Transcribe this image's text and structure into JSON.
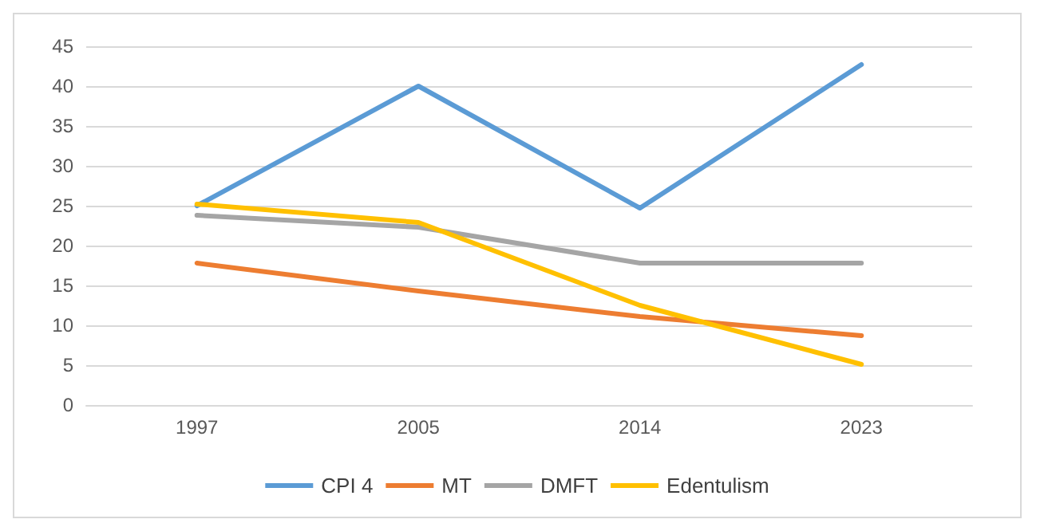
{
  "chart_data": {
    "type": "line",
    "categories": [
      "1997",
      "2005",
      "2014",
      "2023"
    ],
    "series": [
      {
        "name": "CPI 4",
        "color": "#5b9bd5",
        "values": [
          25,
          40,
          24.7,
          42.7
        ]
      },
      {
        "name": "MT",
        "color": "#ed7d31",
        "values": [
          17.8,
          14.3,
          11.1,
          8.7
        ]
      },
      {
        "name": "DMFT",
        "color": "#a5a5a5",
        "values": [
          23.8,
          22.3,
          17.8,
          17.8
        ]
      },
      {
        "name": "Edentulism",
        "color": "#ffc000",
        "values": [
          25.2,
          22.9,
          12.5,
          5.1
        ]
      }
    ],
    "ylim": [
      0,
      45
    ],
    "yticks": [
      0,
      5,
      10,
      15,
      20,
      25,
      30,
      35,
      40,
      45
    ],
    "grid": "y",
    "legend": "bottom",
    "marker": "none",
    "line_style": "solid"
  }
}
